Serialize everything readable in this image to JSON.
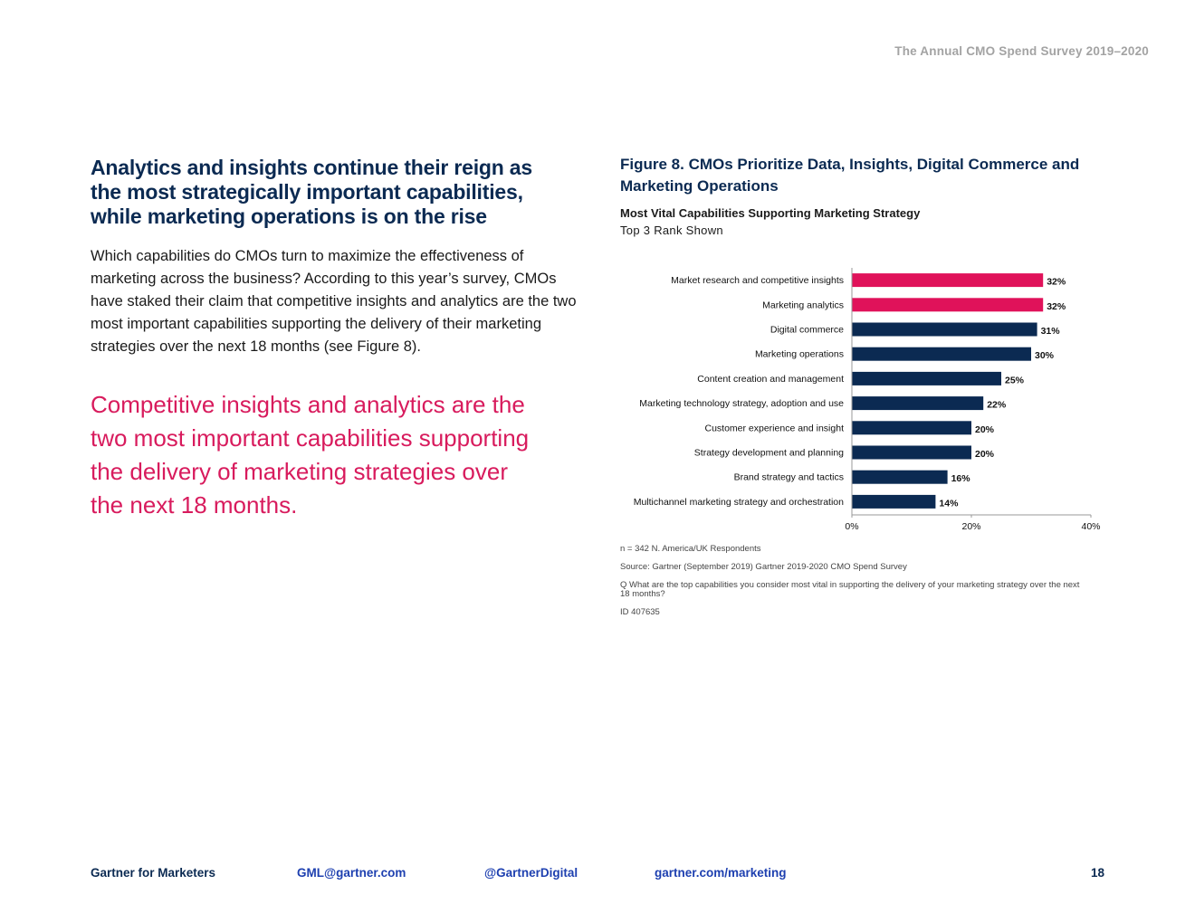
{
  "header": {
    "running_title": "The Annual CMO Spend Survey 2019–2020"
  },
  "article": {
    "headline": "Analytics and insights continue their reign as the most strategically important capabilities, while marketing operations is on the rise",
    "body": "Which capabilities do CMOs turn to maximize the effectiveness of marketing across the business? According to this year’s survey, CMOs have staked their claim that competitive insights and analytics are the two most important capabilities supporting the delivery of their marketing strategies over the next 18 months (see Figure 8).",
    "pull_quote": "Competitive insights and analytics are the two most important capabilities supporting the delivery of marketing strategies over the next 18 months."
  },
  "figure": {
    "title": "Figure 8. CMOs Prioritize Data, Insights, Digital Commerce and Marketing Operations",
    "subtitle": "Most Vital Capabilities Supporting Marketing Strategy",
    "note": "Top 3 Rank Shown",
    "footnotes": {
      "n": "n = 342 N. America/UK Respondents",
      "source": "Source: Gartner (September 2019) Gartner 2019-2020 CMO Spend Survey",
      "question": "Q What are the top capabilities you consider most vital in supporting the delivery of your marketing strategy over the next 18 months?",
      "id": "ID 407635"
    }
  },
  "chart_data": {
    "type": "bar",
    "orientation": "horizontal",
    "title": "Most Vital Capabilities Supporting Marketing Strategy",
    "categories": [
      "Market research and competitive insights",
      "Marketing analytics",
      "Digital commerce",
      "Marketing operations",
      "Content creation and management",
      "Marketing technology strategy, adoption and use",
      "Customer experience and insight",
      "Strategy development and planning",
      "Brand strategy and tactics",
      "Multichannel marketing strategy and orchestration"
    ],
    "values": [
      32,
      32,
      31,
      30,
      25,
      22,
      20,
      20,
      16,
      14
    ],
    "value_labels": [
      "32%",
      "32%",
      "31%",
      "30%",
      "25%",
      "22%",
      "20%",
      "20%",
      "16%",
      "14%"
    ],
    "highlight_index": [
      0,
      1
    ],
    "xlim": [
      0,
      40
    ],
    "xticks": [
      0,
      20,
      40
    ],
    "xtick_labels": [
      "0%",
      "20%",
      "40%"
    ],
    "colors": {
      "highlight": "#e0125a",
      "default": "#0b2a52"
    }
  },
  "footer": {
    "brand": "Gartner for Marketers",
    "email": "GML@gartner.com",
    "social": "@GartnerDigital",
    "website": "gartner.com/marketing",
    "page_number": "18"
  }
}
